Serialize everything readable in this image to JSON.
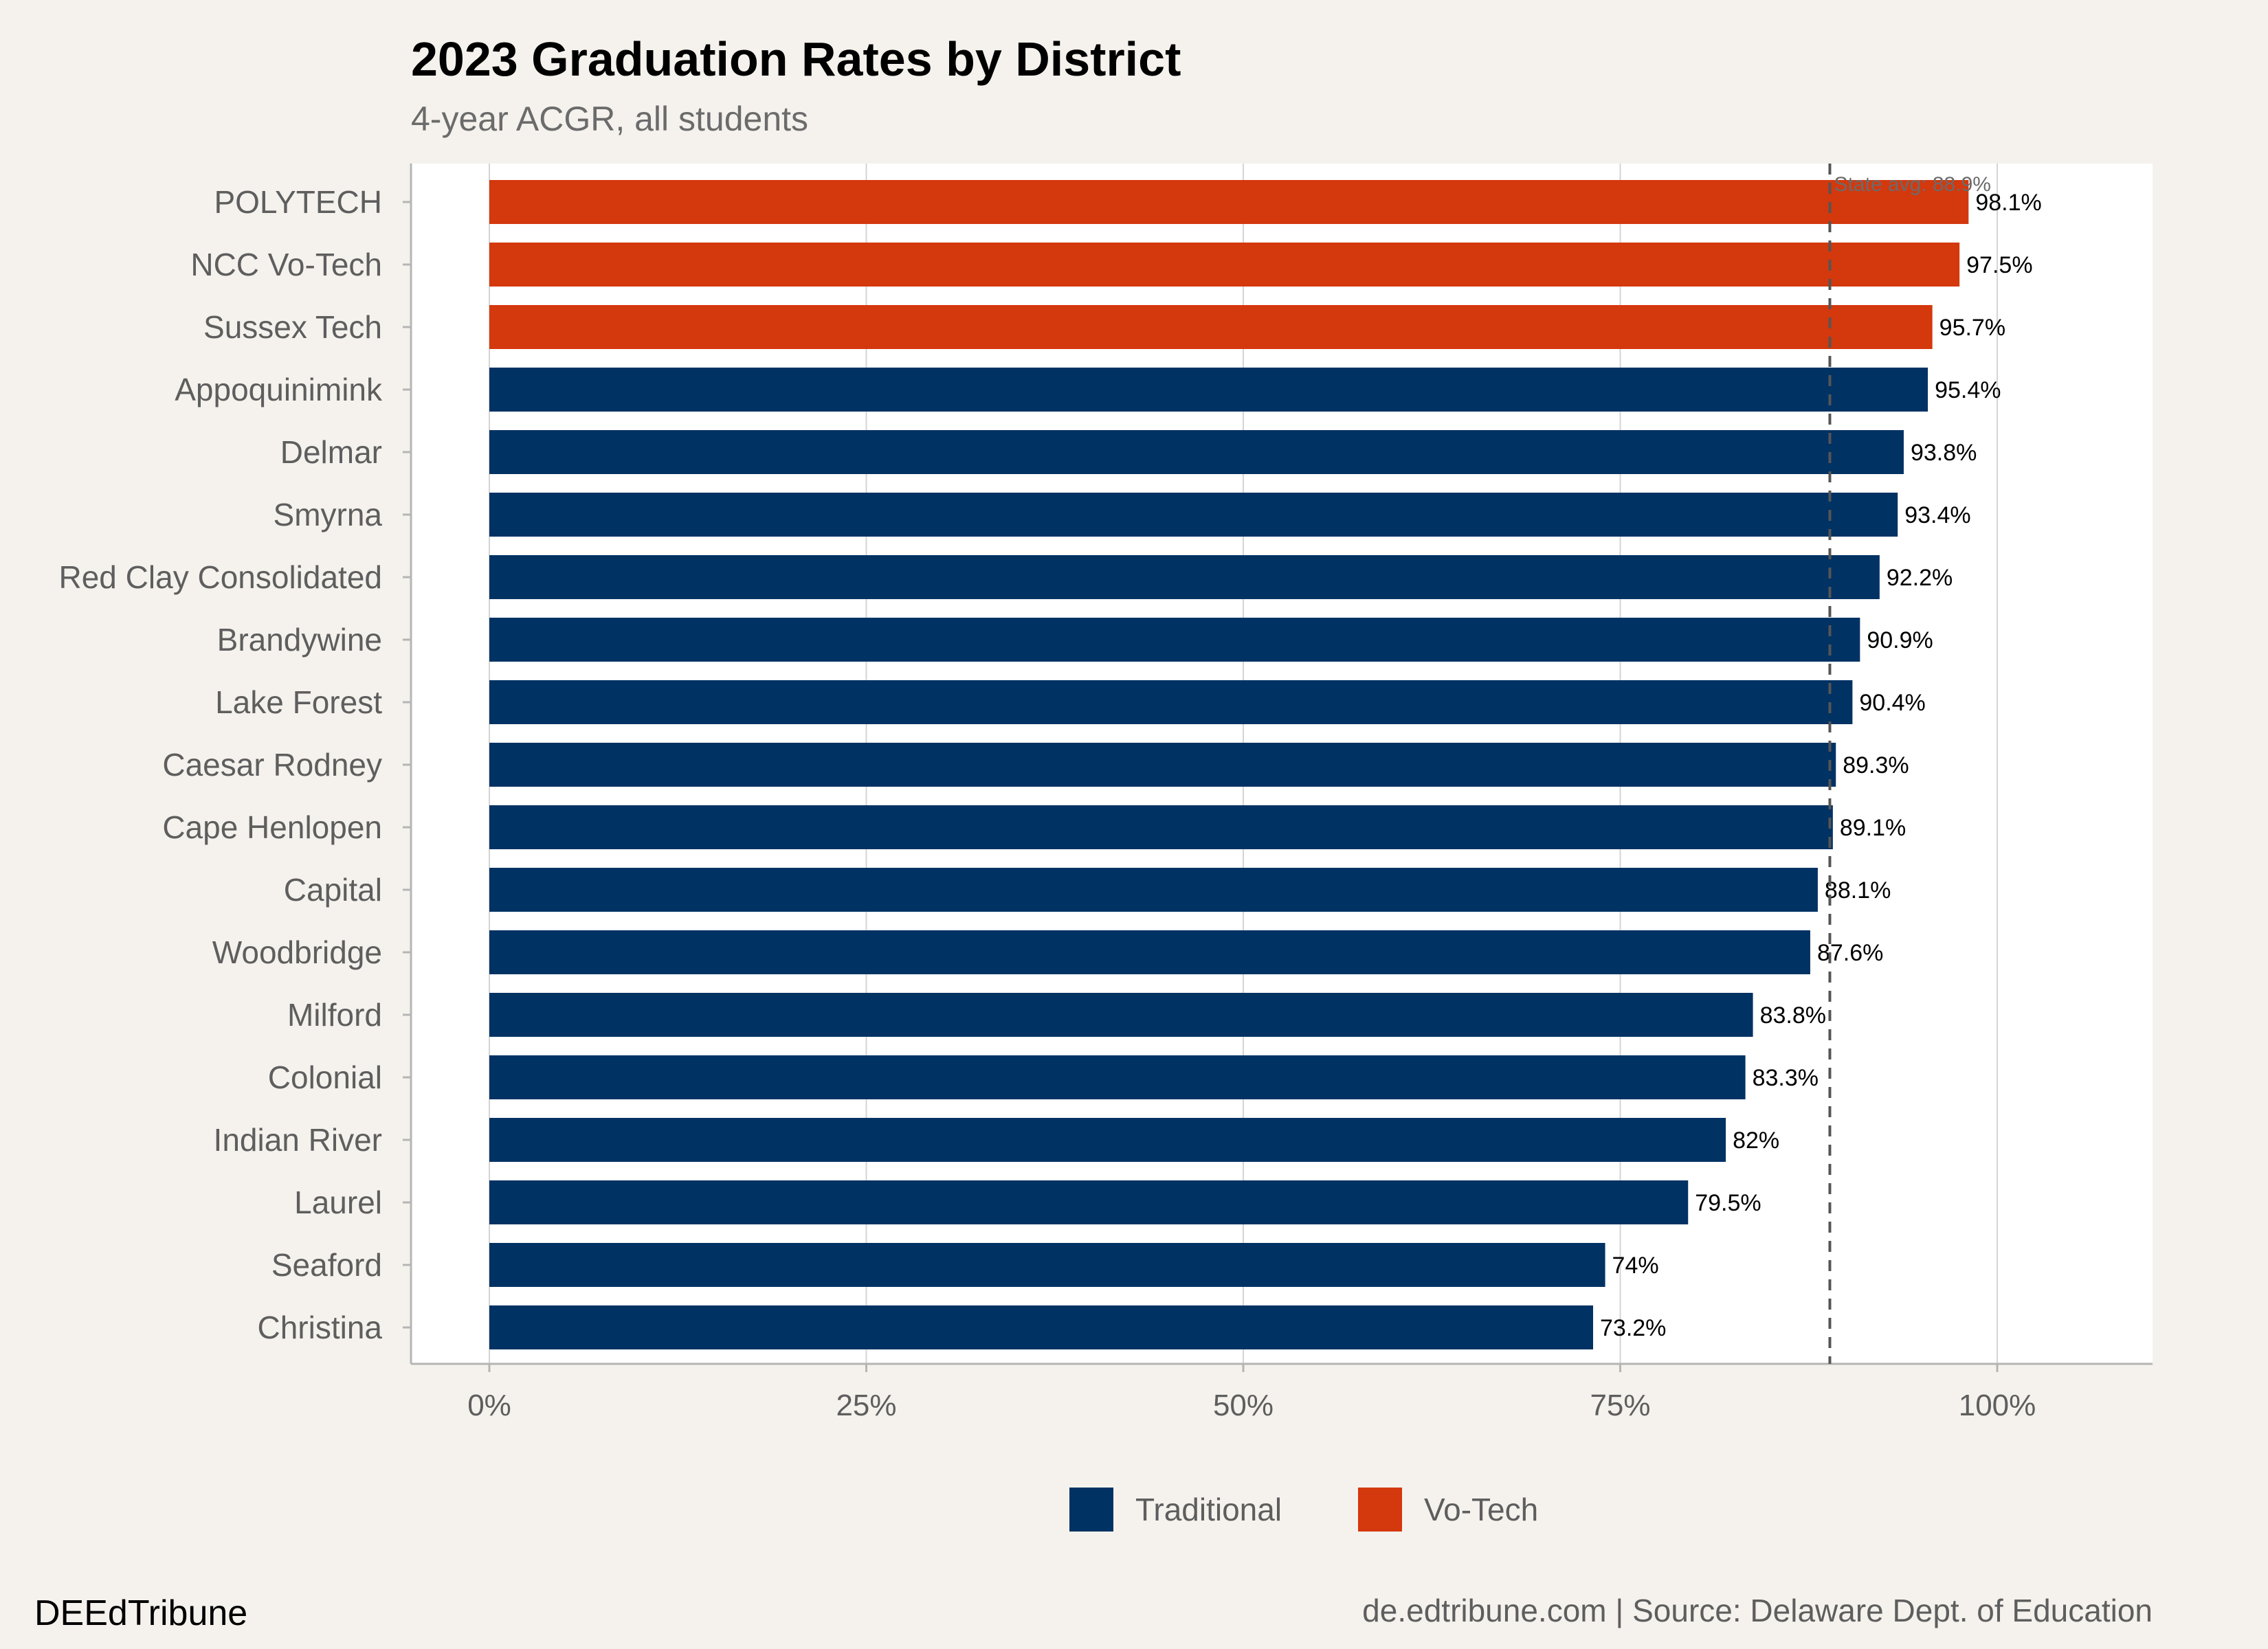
{
  "chart_data": {
    "type": "bar",
    "orientation": "horizontal",
    "title": "2023 Graduation Rates by District",
    "subtitle": "4-year ACGR, all students",
    "categories": [
      "POLYTECH",
      "NCC Vo-Tech",
      "Sussex Tech",
      "Appoquinimink",
      "Delmar",
      "Smyrna",
      "Red Clay Consolidated",
      "Brandywine",
      "Lake Forest",
      "Caesar Rodney",
      "Cape Henlopen",
      "Capital",
      "Woodbridge",
      "Milford",
      "Colonial",
      "Indian River",
      "Laurel",
      "Seaford",
      "Christina"
    ],
    "values": [
      98.1,
      97.5,
      95.7,
      95.4,
      93.8,
      93.4,
      92.2,
      90.9,
      90.4,
      89.3,
      89.1,
      88.1,
      87.6,
      83.8,
      83.3,
      82,
      79.5,
      74,
      73.2
    ],
    "value_labels": [
      "98.1%",
      "97.5%",
      "95.7%",
      "95.4%",
      "93.8%",
      "93.4%",
      "92.2%",
      "90.9%",
      "90.4%",
      "89.3%",
      "89.1%",
      "88.1%",
      "87.6%",
      "83.8%",
      "83.3%",
      "82%",
      "79.5%",
      "74%",
      "73.2%"
    ],
    "groups": [
      "Vo-Tech",
      "Vo-Tech",
      "Vo-Tech",
      "Traditional",
      "Traditional",
      "Traditional",
      "Traditional",
      "Traditional",
      "Traditional",
      "Traditional",
      "Traditional",
      "Traditional",
      "Traditional",
      "Traditional",
      "Traditional",
      "Traditional",
      "Traditional",
      "Traditional",
      "Traditional"
    ],
    "xlim": [
      -5,
      110
    ],
    "x_ticks": [
      0,
      25,
      50,
      75,
      100
    ],
    "x_tick_labels": [
      "0%",
      "25%",
      "50%",
      "75%",
      "100%"
    ],
    "xlabel": "",
    "ylabel": "",
    "grid": "vertical",
    "reference_line": {
      "value": 88.9,
      "label": "State avg: 88.9%",
      "style": "dashed"
    },
    "legend": {
      "position": "bottom",
      "items": [
        {
          "name": "Traditional",
          "color": "#003264"
        },
        {
          "name": "Vo-Tech",
          "color": "#d4380d"
        }
      ]
    }
  },
  "footer": {
    "brand": "DEEdTribune",
    "source": "de.edtribune.com | Source: Delaware Dept. of Education"
  }
}
